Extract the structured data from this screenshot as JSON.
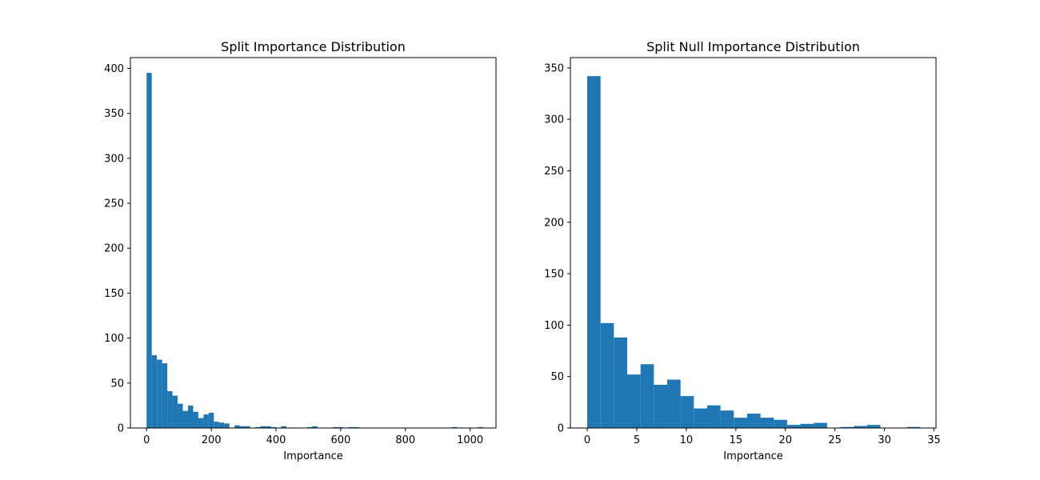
{
  "colors": {
    "bar": "#1f77b4",
    "axis": "#000000",
    "background": "#ffffff"
  },
  "chart_data": [
    {
      "type": "bar",
      "title": "Split Importance Distribution",
      "xlabel": "Importance",
      "ylabel": "",
      "xlim": [
        -50,
        1080
      ],
      "ylim": [
        0,
        412
      ],
      "grid": false,
      "xticks": [
        0,
        200,
        400,
        600,
        800,
        1000
      ],
      "yticks": [
        0,
        50,
        100,
        150,
        200,
        250,
        300,
        350,
        400
      ],
      "bin_width": 16,
      "bins_start": [
        0,
        16,
        32,
        48,
        64,
        80,
        96,
        112,
        128,
        144,
        160,
        176,
        192,
        208,
        224,
        240,
        256,
        272,
        288,
        304,
        320,
        336,
        352,
        368,
        384,
        400,
        416,
        432,
        448,
        464,
        480,
        496,
        512,
        528,
        544,
        560,
        576,
        592,
        608,
        624,
        640,
        656,
        672,
        688,
        704,
        720,
        736,
        752,
        768,
        784,
        800,
        816,
        832,
        848,
        864,
        880,
        896,
        912,
        928,
        944,
        960,
        976,
        992,
        1008,
        1024
      ],
      "values": [
        395,
        81,
        76,
        72,
        41,
        36,
        27,
        19,
        25,
        18,
        11,
        15,
        17,
        7,
        6,
        5,
        0,
        3,
        2,
        2,
        0,
        1,
        2,
        2,
        1,
        0,
        2,
        0,
        0,
        0,
        0,
        1,
        2,
        0,
        0,
        0,
        1,
        1,
        0,
        1,
        1,
        0,
        0,
        0,
        0,
        0,
        0,
        0,
        0,
        0,
        0,
        0,
        0,
        0,
        0,
        0,
        0,
        0,
        0,
        1,
        0,
        0,
        0,
        0,
        1
      ]
    },
    {
      "type": "bar",
      "title": "Split Null Importance Distribution",
      "xlabel": "Importance",
      "ylabel": "",
      "xlim": [
        -1.7,
        35.2
      ],
      "ylim": [
        0,
        360
      ],
      "grid": false,
      "xticks": [
        0,
        5,
        10,
        15,
        20,
        25,
        30,
        35
      ],
      "yticks": [
        0,
        50,
        100,
        150,
        200,
        250,
        300,
        350
      ],
      "bin_width": 1.345,
      "bins_start": [
        0,
        1.345,
        2.69,
        4.035,
        5.38,
        6.725,
        8.07,
        9.415,
        10.76,
        12.105,
        13.45,
        14.795,
        16.14,
        17.485,
        18.83,
        20.175,
        21.52,
        22.865,
        24.21,
        25.555,
        26.9,
        28.245,
        29.59,
        30.935,
        32.28
      ],
      "values": [
        342,
        102,
        88,
        52,
        62,
        42,
        47,
        31,
        19,
        22,
        17,
        10,
        14,
        10,
        8,
        3,
        4,
        5,
        0,
        1,
        2,
        3,
        0,
        0,
        1
      ]
    }
  ]
}
